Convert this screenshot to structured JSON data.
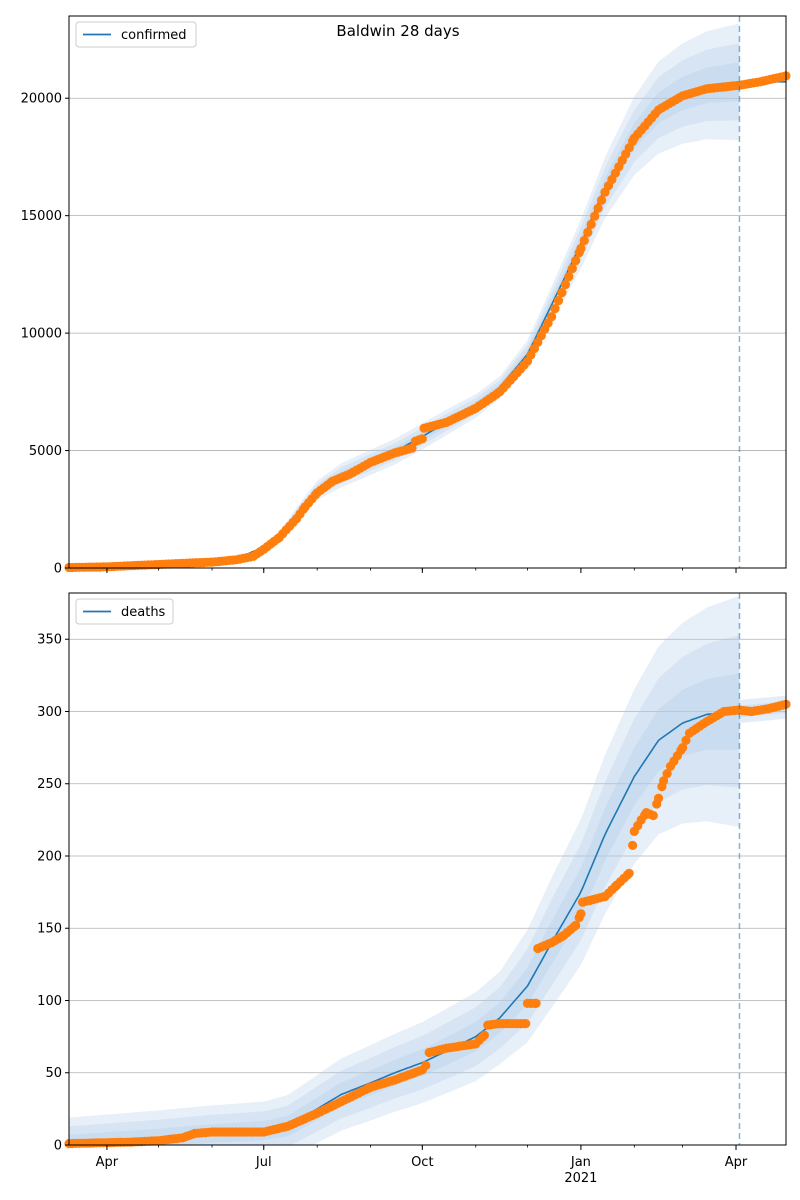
{
  "figure": {
    "title": "Baldwin 28 days"
  },
  "colors": {
    "line": "#1f77b4",
    "points": "#ff7f0e",
    "band": "#aecbe8",
    "grid": "#b0b0b0",
    "forecast_marker": "#1f77b4"
  },
  "chart_data": [
    {
      "type": "line",
      "name": "confirmed-panel",
      "legend": "confirmed",
      "legend_position": "top-left",
      "x_range": [
        "2020-03-10",
        "2021-04-30"
      ],
      "ylim": [
        0,
        23500
      ],
      "yticks": [
        0,
        5000,
        10000,
        15000,
        20000
      ],
      "xticks": [
        {
          "date": "2020-04-01",
          "label": "Apr",
          "sublabel": ""
        },
        {
          "date": "2020-07-01",
          "label": "Jul",
          "sublabel": ""
        },
        {
          "date": "2020-10-01",
          "label": "Oct",
          "sublabel": ""
        },
        {
          "date": "2021-01-01",
          "label": "Jan",
          "sublabel": "2021"
        },
        {
          "date": "2021-04-01",
          "label": "Apr",
          "sublabel": ""
        }
      ],
      "grid": "horizontal",
      "forecast_start": "2021-04-03",
      "model": [
        [
          "2020-03-10",
          20
        ],
        [
          "2020-04-01",
          60
        ],
        [
          "2020-05-01",
          180
        ],
        [
          "2020-06-01",
          320
        ],
        [
          "2020-06-20",
          550
        ],
        [
          "2020-07-01",
          900
        ],
        [
          "2020-07-10",
          1400
        ],
        [
          "2020-07-20",
          2300
        ],
        [
          "2020-08-01",
          3300
        ],
        [
          "2020-08-15",
          3950
        ],
        [
          "2020-09-01",
          4500
        ],
        [
          "2020-09-15",
          4950
        ],
        [
          "2020-10-01",
          5600
        ],
        [
          "2020-10-15",
          6200
        ],
        [
          "2020-11-01",
          6900
        ],
        [
          "2020-11-15",
          7700
        ],
        [
          "2020-12-01",
          9100
        ],
        [
          "2020-12-15",
          11200
        ],
        [
          "2021-01-01",
          13800
        ],
        [
          "2021-01-15",
          16200
        ],
        [
          "2021-02-01",
          18400
        ],
        [
          "2021-02-15",
          19600
        ],
        [
          "2021-03-01",
          20200
        ],
        [
          "2021-03-15",
          20550
        ],
        [
          "2021-04-03",
          20700
        ],
        [
          "2021-04-30",
          20700
        ]
      ],
      "band_spread": [
        [
          "2020-03-10",
          0.0
        ],
        [
          "2020-06-20",
          0.02
        ],
        [
          "2020-07-20",
          0.12
        ],
        [
          "2020-08-15",
          0.13
        ],
        [
          "2020-10-01",
          0.1
        ],
        [
          "2020-11-15",
          0.06
        ],
        [
          "2020-12-15",
          0.07
        ],
        [
          "2021-01-15",
          0.08
        ],
        [
          "2021-02-15",
          0.1
        ],
        [
          "2021-04-03",
          0.12
        ]
      ],
      "post_band": [
        [
          "2021-04-03",
          20700
        ],
        [
          "2021-04-30",
          20700
        ]
      ],
      "post_band_spread": 0.0,
      "observed": [
        [
          "2020-03-10",
          20
        ],
        [
          "2020-04-01",
          50
        ],
        [
          "2020-04-15",
          100
        ],
        [
          "2020-05-01",
          150
        ],
        [
          "2020-05-15",
          200
        ],
        [
          "2020-06-01",
          250
        ],
        [
          "2020-06-15",
          350
        ],
        [
          "2020-06-25",
          500
        ],
        [
          "2020-07-01",
          800
        ],
        [
          "2020-07-10",
          1300
        ],
        [
          "2020-07-20",
          2100
        ],
        [
          "2020-07-25",
          2600
        ],
        [
          "2020-08-01",
          3200
        ],
        [
          "2020-08-10",
          3700
        ],
        [
          "2020-08-20",
          4000
        ],
        [
          "2020-09-01",
          4500
        ],
        [
          "2020-09-15",
          4900
        ],
        [
          "2020-09-25",
          5100
        ],
        [
          "2020-09-27",
          5400
        ],
        [
          "2020-10-01",
          5500
        ],
        [
          "2020-10-02",
          5950
        ],
        [
          "2020-10-15",
          6200
        ],
        [
          "2020-11-01",
          6800
        ],
        [
          "2020-11-15",
          7500
        ],
        [
          "2020-12-01",
          8800
        ],
        [
          "2020-12-15",
          10700
        ],
        [
          "2021-01-01",
          13600
        ],
        [
          "2021-01-15",
          16000
        ],
        [
          "2021-02-01",
          18300
        ],
        [
          "2021-02-15",
          19500
        ],
        [
          "2021-03-01",
          20100
        ],
        [
          "2021-03-15",
          20400
        ],
        [
          "2021-04-03",
          20550
        ],
        [
          "2021-04-15",
          20700
        ],
        [
          "2021-04-30",
          20950
        ]
      ]
    },
    {
      "type": "line",
      "name": "deaths-panel",
      "legend": "deaths",
      "legend_position": "top-left",
      "x_range": [
        "2020-03-10",
        "2021-04-30"
      ],
      "ylim": [
        0,
        382
      ],
      "yticks": [
        0,
        50,
        100,
        150,
        200,
        250,
        300,
        350
      ],
      "xticks": [
        {
          "date": "2020-04-01",
          "label": "Apr",
          "sublabel": ""
        },
        {
          "date": "2020-07-01",
          "label": "Jul",
          "sublabel": ""
        },
        {
          "date": "2020-10-01",
          "label": "Oct",
          "sublabel": ""
        },
        {
          "date": "2021-01-01",
          "label": "Jan",
          "sublabel": "2021"
        },
        {
          "date": "2021-04-01",
          "label": "Apr",
          "sublabel": ""
        }
      ],
      "grid": "horizontal",
      "forecast_start": "2021-04-03",
      "model": [
        [
          "2020-03-10",
          1
        ],
        [
          "2020-05-01",
          5
        ],
        [
          "2020-06-01",
          8
        ],
        [
          "2020-07-01",
          10
        ],
        [
          "2020-07-15",
          13
        ],
        [
          "2020-08-01",
          25
        ],
        [
          "2020-08-15",
          35
        ],
        [
          "2020-09-01",
          43
        ],
        [
          "2020-09-15",
          50
        ],
        [
          "2020-10-01",
          57
        ],
        [
          "2020-10-15",
          65
        ],
        [
          "2020-11-01",
          75
        ],
        [
          "2020-11-15",
          88
        ],
        [
          "2020-12-01",
          110
        ],
        [
          "2020-12-15",
          140
        ],
        [
          "2021-01-01",
          175
        ],
        [
          "2021-01-15",
          215
        ],
        [
          "2021-02-01",
          255
        ],
        [
          "2021-02-15",
          280
        ],
        [
          "2021-03-01",
          292
        ],
        [
          "2021-03-15",
          298
        ],
        [
          "2021-04-03",
          300
        ]
      ],
      "band_spread": [
        [
          "2020-03-10",
          18
        ],
        [
          "2020-07-01",
          20
        ],
        [
          "2020-08-15",
          25
        ],
        [
          "2020-10-01",
          28
        ],
        [
          "2020-11-15",
          32
        ],
        [
          "2020-12-15",
          45
        ],
        [
          "2021-01-15",
          55
        ],
        [
          "2021-02-15",
          65
        ],
        [
          "2021-04-03",
          80
        ]
      ],
      "post_band": [
        [
          "2021-04-03",
          300
        ],
        [
          "2021-04-30",
          303
        ]
      ],
      "post_band_spread": 8,
      "observed": [
        [
          "2020-03-10",
          1
        ],
        [
          "2020-04-15",
          2
        ],
        [
          "2020-05-01",
          3
        ],
        [
          "2020-05-15",
          5
        ],
        [
          "2020-05-22",
          8
        ],
        [
          "2020-06-01",
          9
        ],
        [
          "2020-07-01",
          9
        ],
        [
          "2020-07-15",
          13
        ],
        [
          "2020-08-01",
          22
        ],
        [
          "2020-08-15",
          30
        ],
        [
          "2020-09-01",
          40
        ],
        [
          "2020-09-15",
          45
        ],
        [
          "2020-10-01",
          52
        ],
        [
          "2020-10-03",
          55
        ],
        [
          "2020-10-05",
          64
        ],
        [
          "2020-10-15",
          67
        ],
        [
          "2020-11-01",
          70
        ],
        [
          "2020-11-06",
          76
        ],
        [
          "2020-11-08",
          83
        ],
        [
          "2020-11-15",
          84
        ],
        [
          "2020-11-30",
          84
        ],
        [
          "2020-12-01",
          98
        ],
        [
          "2020-12-06",
          98
        ],
        [
          "2020-12-07",
          136
        ],
        [
          "2020-12-15",
          140
        ],
        [
          "2020-12-22",
          145
        ],
        [
          "2020-12-29",
          152
        ],
        [
          "2021-01-01",
          160
        ],
        [
          "2021-01-02",
          168
        ],
        [
          "2021-01-15",
          172
        ],
        [
          "2021-01-22",
          180
        ],
        [
          "2021-01-29",
          188
        ],
        [
          "2021-02-01",
          217
        ],
        [
          "2021-02-05",
          225
        ],
        [
          "2021-02-08",
          230
        ],
        [
          "2021-02-12",
          228
        ],
        [
          "2021-02-15",
          240
        ],
        [
          "2021-02-18",
          252
        ],
        [
          "2021-02-22",
          262
        ],
        [
          "2021-03-01",
          275
        ],
        [
          "2021-03-05",
          285
        ],
        [
          "2021-03-15",
          293
        ],
        [
          "2021-03-25",
          300
        ],
        [
          "2021-04-03",
          301
        ],
        [
          "2021-04-10",
          300
        ],
        [
          "2021-04-20",
          302
        ],
        [
          "2021-04-30",
          305
        ]
      ]
    }
  ]
}
